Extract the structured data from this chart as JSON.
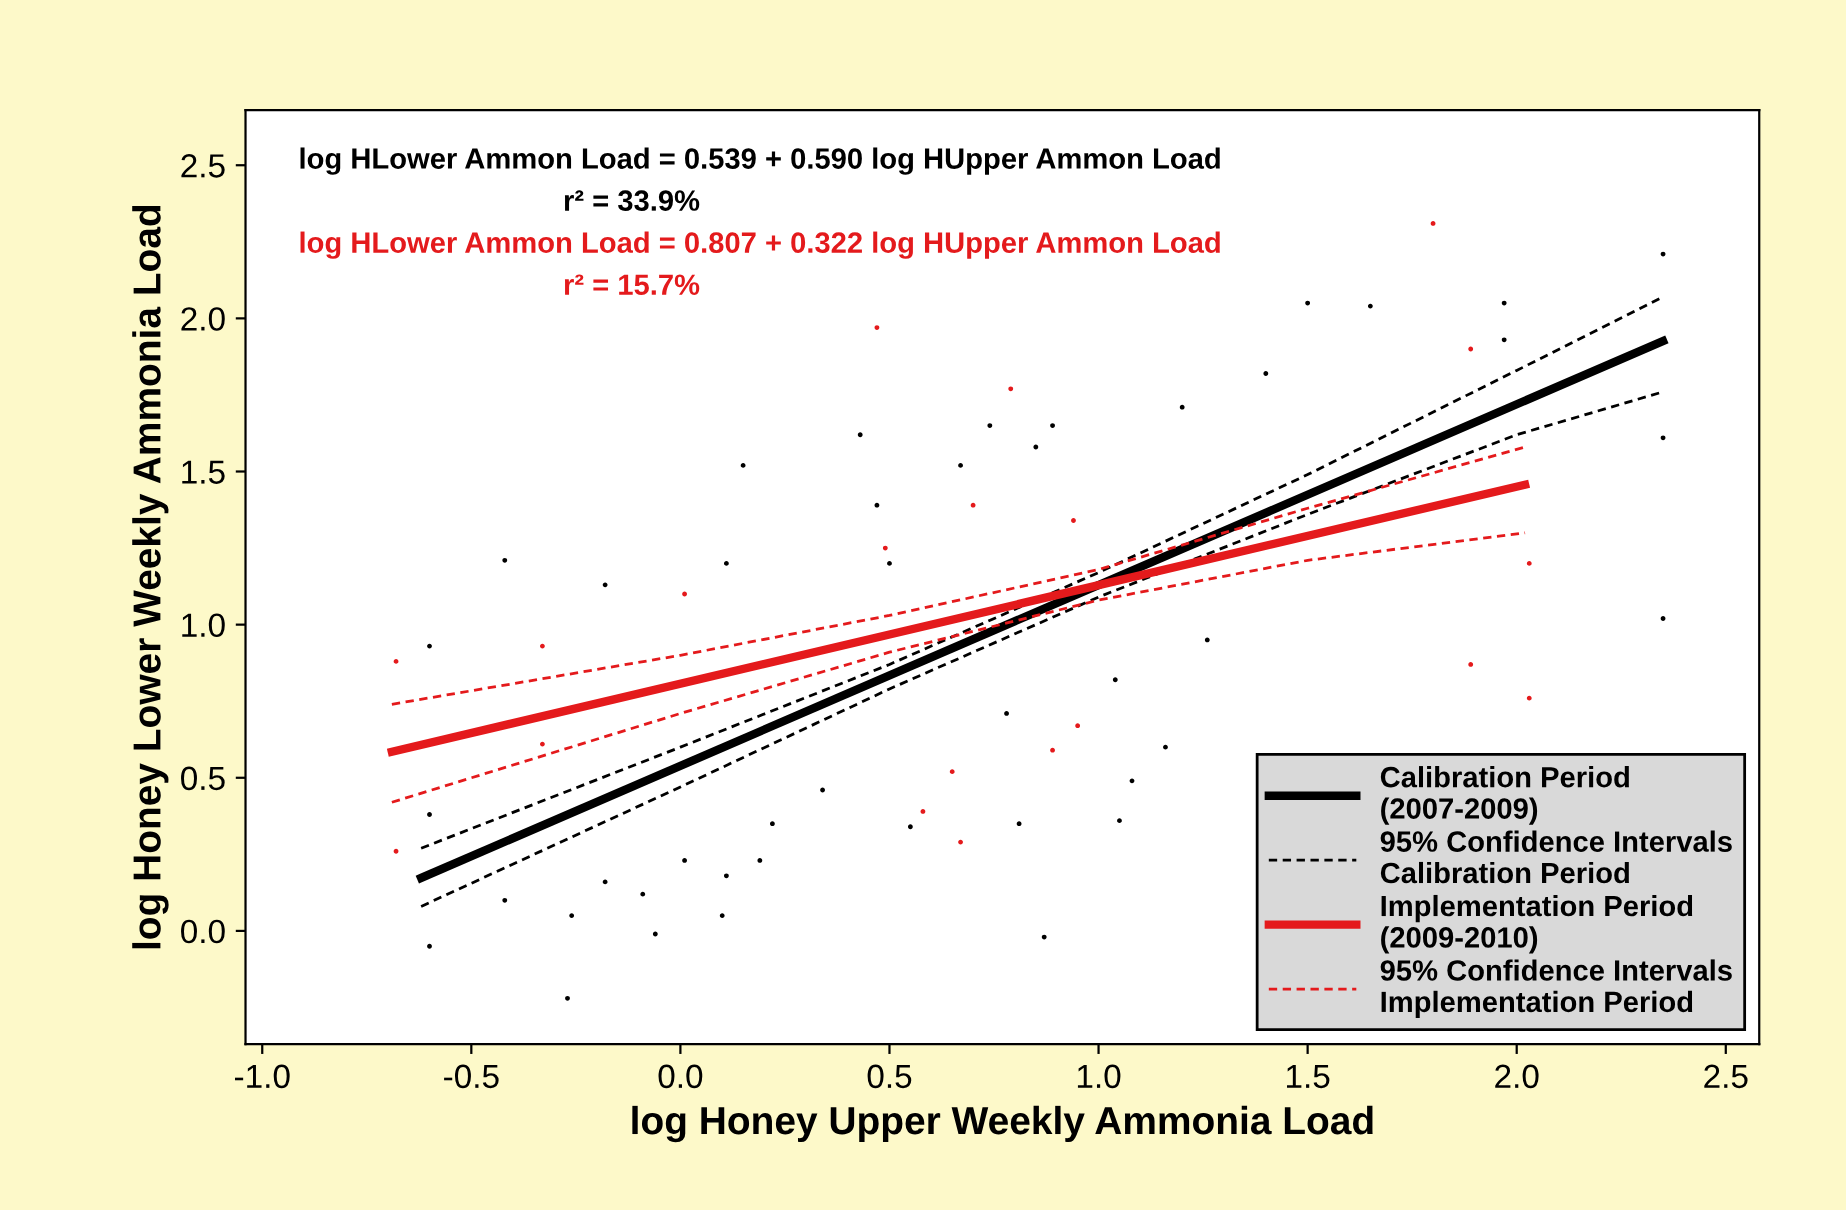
{
  "chart_data": {
    "type": "scatter",
    "xlabel": "log Honey Upper Weekly Ammonia Load",
    "ylabel": "log Honey Lower Weekly Ammonia Load",
    "annotations": [
      "log HLower Ammon Load = 0.539 + 0.590 log HUpper Ammon Load",
      "r² = 33.9%",
      "log HLower Ammon Load = 0.807 + 0.322 log HUpper Ammon Load",
      "r² = 15.7%"
    ],
    "xlim": [
      -1.04,
      2.58
    ],
    "ylim": [
      -0.37,
      2.68
    ],
    "xticks": [
      {
        "value": -1.0,
        "label": "-1.0"
      },
      {
        "value": -0.5,
        "label": "-0.5"
      },
      {
        "value": 0.0,
        "label": "0.0"
      },
      {
        "value": 0.5,
        "label": "0.5"
      },
      {
        "value": 1.0,
        "label": "1.0"
      },
      {
        "value": 1.5,
        "label": "1.5"
      },
      {
        "value": 2.0,
        "label": "2.0"
      },
      {
        "value": 2.5,
        "label": "2.5"
      }
    ],
    "yticks": [
      {
        "value": 0.0,
        "label": "0.0"
      },
      {
        "value": 0.5,
        "label": "0.5"
      },
      {
        "value": 1.0,
        "label": "1.0"
      },
      {
        "value": 1.5,
        "label": "1.5"
      },
      {
        "value": 2.0,
        "label": "2.0"
      },
      {
        "value": 2.5,
        "label": "2.5"
      }
    ],
    "grid": false,
    "legend": "bottom right",
    "series": [
      {
        "marker": "circle",
        "color": "#000000",
        "x": [
          -0.42,
          0.11,
          0.5,
          0.43,
          0.15,
          0.74,
          0.89,
          0.85,
          0.67,
          0.47,
          -0.18,
          -0.6,
          -0.6,
          -0.6,
          -0.42,
          -0.26,
          -0.06,
          0.1,
          0.01,
          0.19,
          0.11,
          0.22,
          -0.18,
          -0.09,
          0.81,
          0.87,
          0.78,
          1.05,
          1.08,
          1.04,
          1.16,
          0.55,
          0.34,
          2.35,
          2.35,
          2.35,
          1.4,
          1.5,
          1.65,
          1.97,
          1.97,
          1.26,
          1.2,
          -0.27
        ],
        "values": [
          1.21,
          1.2,
          1.2,
          1.62,
          1.52,
          1.65,
          1.65,
          1.58,
          1.52,
          1.39,
          1.13,
          0.93,
          0.38,
          -0.05,
          0.1,
          0.05,
          -0.01,
          0.05,
          0.23,
          0.23,
          0.18,
          0.35,
          0.16,
          0.12,
          0.35,
          -0.02,
          0.71,
          0.36,
          0.49,
          0.82,
          0.6,
          0.34,
          0.46,
          2.21,
          1.61,
          1.02,
          1.82,
          2.05,
          2.04,
          2.05,
          1.93,
          0.95,
          1.71,
          -0.22
        ]
      },
      {
        "marker": "circle",
        "color": "#e41a1c",
        "x": [
          -0.68,
          -0.68,
          -0.33,
          -0.33,
          0.01,
          0.49,
          0.7,
          0.94,
          0.58,
          0.67,
          0.89,
          0.65,
          0.95,
          1.8,
          1.89,
          2.03,
          2.03,
          1.89,
          0.79,
          0.47
        ],
        "values": [
          0.88,
          0.26,
          0.61,
          0.93,
          1.1,
          1.25,
          1.39,
          1.34,
          0.39,
          0.29,
          0.59,
          0.52,
          0.67,
          2.31,
          0.87,
          0.76,
          1.2,
          1.9,
          1.77,
          1.97
        ]
      },
      {
        "type": "line",
        "name": "Calibration Period\n(2007-2009)",
        "color": "#000000",
        "line_style": "solid",
        "x": [
          -0.62,
          2.35
        ],
        "values": [
          0.173,
          1.926
        ]
      },
      {
        "type": "line",
        "name": "95% Confidence Intervals\nCalibration Period",
        "color": "#000000",
        "line_style": "dashed",
        "x": [
          -0.62,
          0.0,
          0.5,
          1.0,
          1.5,
          2.0,
          2.35
        ],
        "values": [
          0.27,
          0.6,
          0.87,
          1.17,
          1.49,
          1.83,
          2.07
        ]
      },
      {
        "type": "line",
        "color": "#000000",
        "line_style": "dashed",
        "x": [
          -0.62,
          0.0,
          0.5,
          1.0,
          1.5,
          2.0,
          2.35
        ],
        "values": [
          0.08,
          0.47,
          0.79,
          1.09,
          1.36,
          1.62,
          1.76
        ]
      },
      {
        "type": "line",
        "name": "Implementation Period\n(2009-2010)",
        "color": "#e41a1c",
        "line_style": "solid",
        "x": [
          -0.69,
          2.02
        ],
        "values": [
          0.585,
          1.457
        ]
      },
      {
        "type": "line",
        "name": "95% Confidence Intervals\nImplementation Period",
        "color": "#e41a1c",
        "line_style": "dashed",
        "x": [
          -0.69,
          0.0,
          0.5,
          1.0,
          1.5,
          2.02
        ],
        "values": [
          0.74,
          0.9,
          1.03,
          1.18,
          1.38,
          1.58
        ]
      },
      {
        "type": "line",
        "color": "#e41a1c",
        "line_style": "dashed",
        "x": [
          -0.69,
          0.0,
          0.5,
          1.0,
          1.5,
          2.02
        ],
        "values": [
          0.42,
          0.71,
          0.91,
          1.08,
          1.21,
          1.3
        ]
      }
    ]
  }
}
